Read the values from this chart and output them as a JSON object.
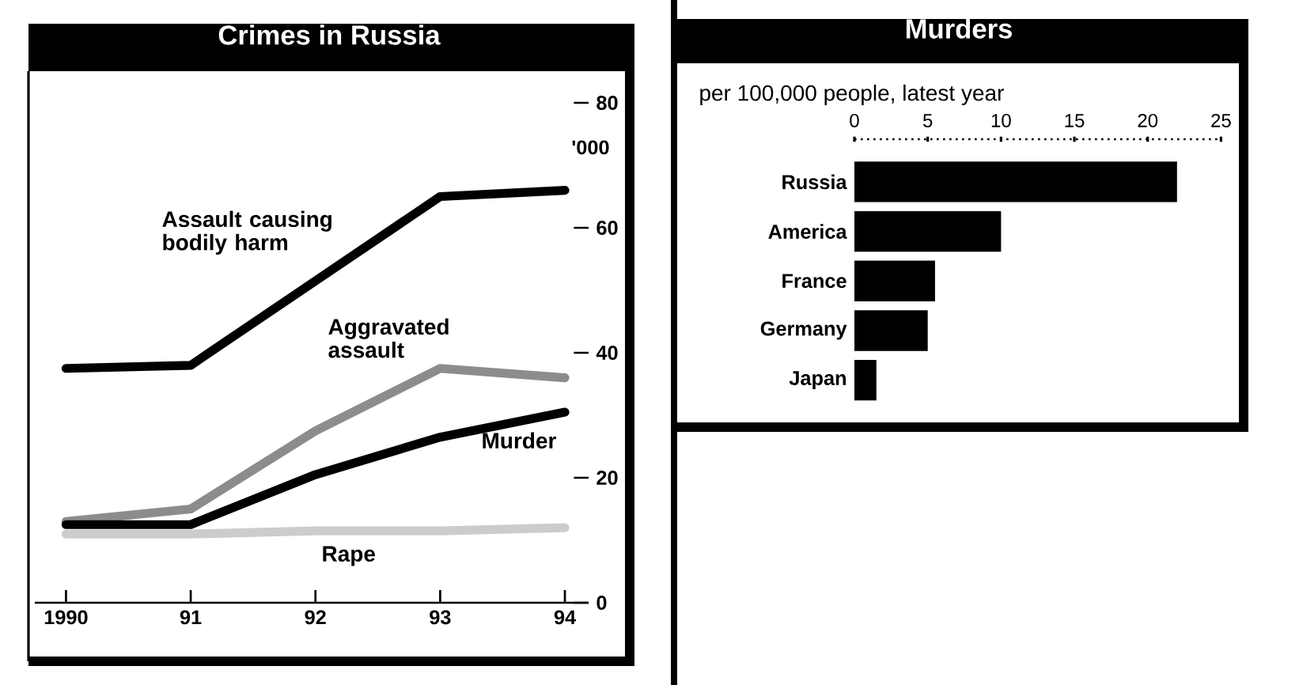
{
  "chart_data": [
    {
      "type": "line",
      "title": "Crimes in Russia",
      "ylabel": "'000",
      "x": [
        1990,
        1991,
        1992,
        1993,
        1994
      ],
      "xlim": [
        1989.75,
        1994.19
      ],
      "xticks": [
        {
          "value": 1990,
          "label": "1990"
        },
        {
          "value": 1991,
          "label": "91"
        },
        {
          "value": 1992,
          "label": "92"
        },
        {
          "value": 1993,
          "label": "93"
        },
        {
          "value": 1994,
          "label": "94"
        }
      ],
      "ylim": [
        0,
        80
      ],
      "yticks": [
        0,
        20,
        40,
        60,
        80
      ],
      "legend": false,
      "marker": "none",
      "series": [
        {
          "name": "Assault causing bodily harm",
          "color": "#000000",
          "values": [
            37.5,
            38,
            51.5,
            65,
            66
          ]
        },
        {
          "name": "Aggravated assault",
          "color": "#8c8c8c",
          "values": [
            13,
            15,
            27.5,
            37.5,
            36
          ]
        },
        {
          "name": "Murder",
          "color": "#000000",
          "values": [
            12.5,
            12.5,
            20.5,
            26.5,
            30.5
          ]
        },
        {
          "name": "Rape",
          "color": "#cccccc",
          "values": [
            11,
            11,
            11.5,
            11.5,
            12
          ]
        }
      ]
    },
    {
      "type": "bar",
      "orientation": "horizontal",
      "title": "Murders",
      "subtitle": "per 100,000 people, latest year",
      "categories": [
        "Russia",
        "America",
        "France",
        "Germany",
        "Japan"
      ],
      "values": [
        22,
        10,
        5.5,
        5,
        1.5
      ],
      "color": "#000000",
      "xlim": [
        0,
        25
      ],
      "xticks": [
        0,
        5,
        10,
        15,
        20,
        25
      ]
    }
  ]
}
